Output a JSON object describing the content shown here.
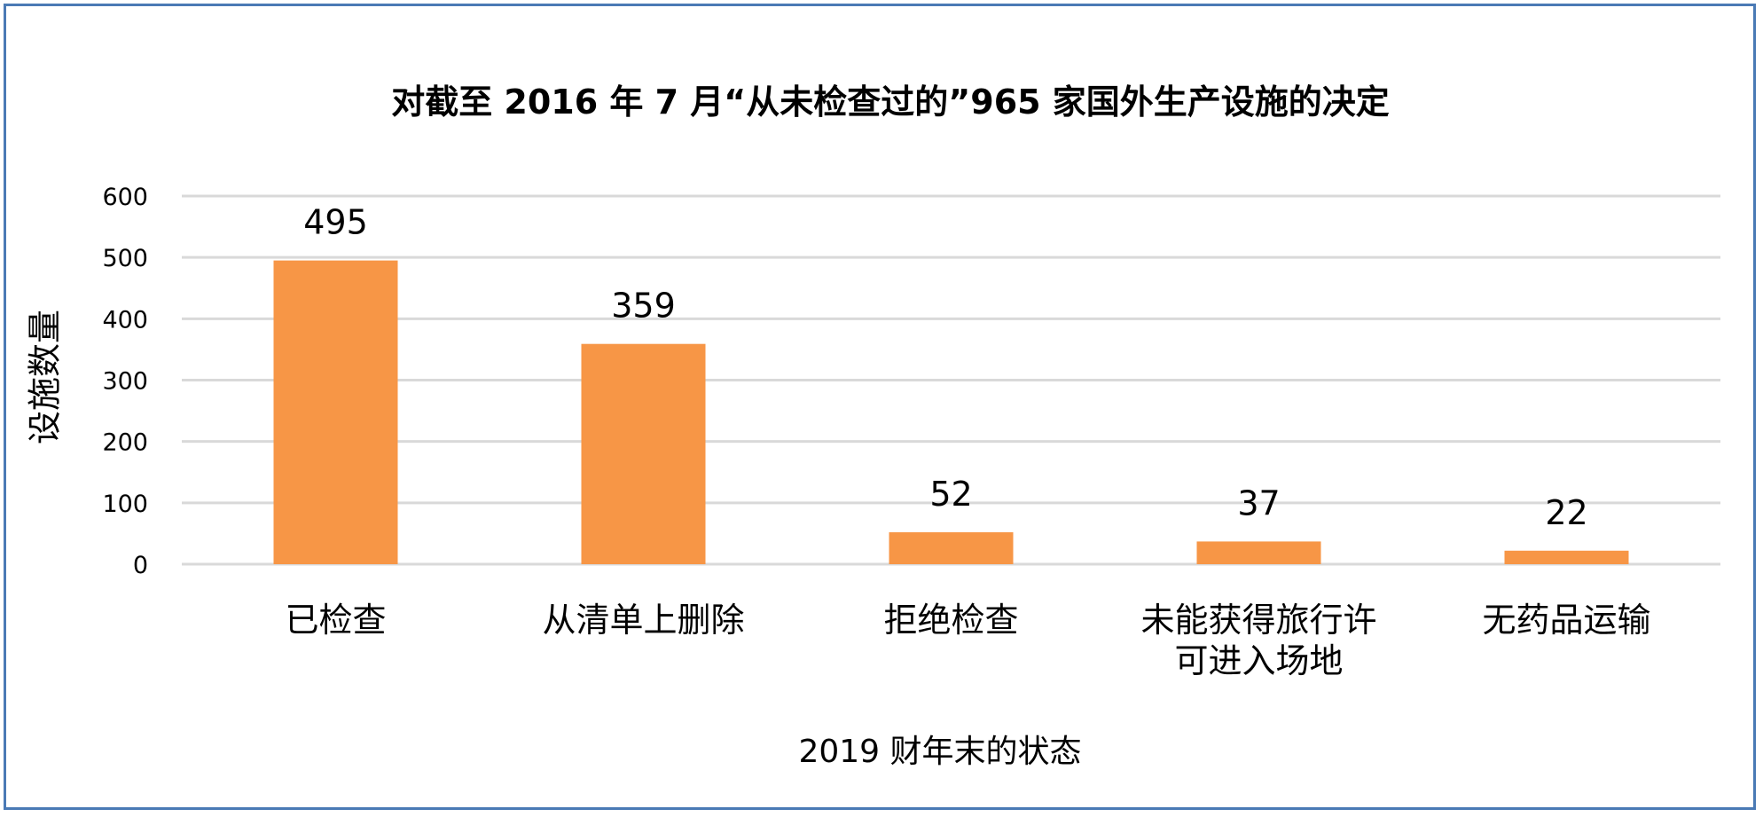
{
  "chart_data": {
    "type": "bar",
    "title": "对截至 2016 年 7 月“从未检查过的”965 家国外生产设施的决定",
    "xlabel": "2019 财年末的状态",
    "ylabel": "设施数量",
    "categories": [
      [
        "已检查"
      ],
      [
        "从清单上删除"
      ],
      [
        "拒绝检查"
      ],
      [
        "未能获得旅行许",
        "可进入场地"
      ],
      [
        "无药品运输"
      ]
    ],
    "values": [
      495,
      359,
      52,
      37,
      22
    ],
    "ylim": [
      0,
      600
    ],
    "yticks": [
      "0",
      "100",
      "200",
      "300",
      "400",
      "500",
      "600"
    ],
    "grid": true,
    "legend": "none",
    "bar_color": "#f79646",
    "grid_color": "#d9d9d9"
  }
}
